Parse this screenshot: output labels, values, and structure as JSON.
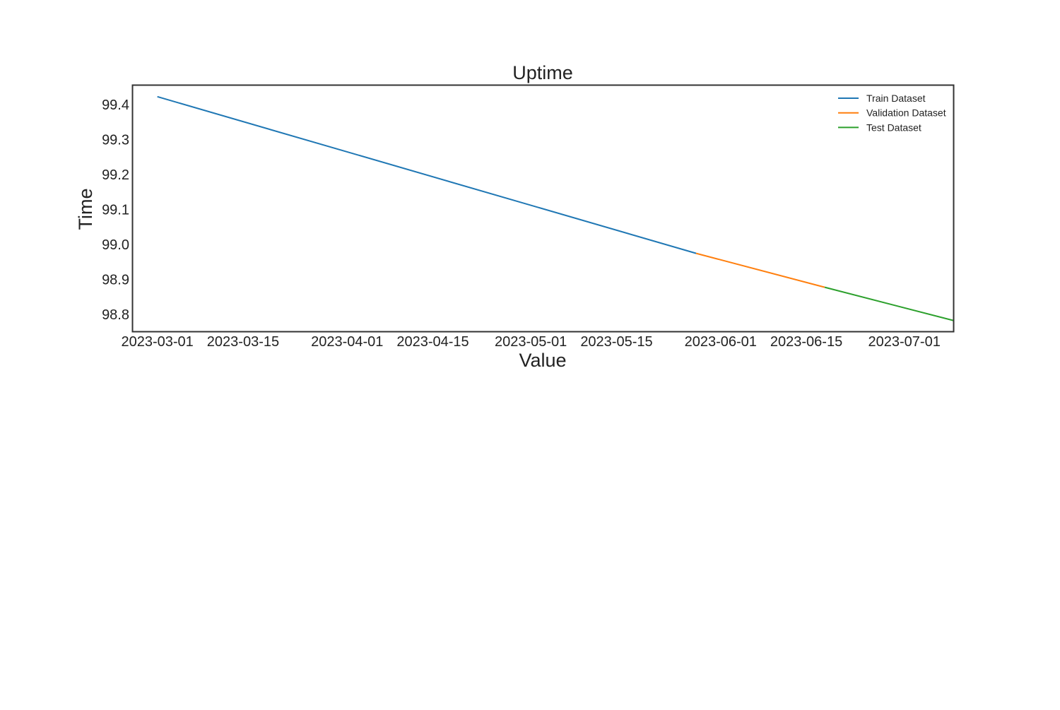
{
  "chart_data": {
    "type": "line",
    "title": "Uptime",
    "xlabel": "Value",
    "ylabel": "Time",
    "x_axis_type": "date",
    "xlim": [
      "2023-02-25",
      "2023-07-09"
    ],
    "ylim": [
      98.752,
      99.455
    ],
    "x_ticks": [
      "2023-03-01",
      "2023-03-15",
      "2023-04-01",
      "2023-04-15",
      "2023-05-01",
      "2023-05-15",
      "2023-06-01",
      "2023-06-15",
      "2023-07-01"
    ],
    "y_ticks": [
      "98.8",
      "98.9",
      "99.0",
      "99.1",
      "99.2",
      "99.3",
      "99.4"
    ],
    "grid": false,
    "legend_position": "top-right",
    "series": [
      {
        "name": "Train Dataset",
        "color": "#1f77b4",
        "x": [
          "2023-03-01",
          "2023-05-28"
        ],
        "y": [
          99.423,
          98.975
        ]
      },
      {
        "name": "Validation Dataset",
        "color": "#ff7f0e",
        "x": [
          "2023-05-28",
          "2023-06-18"
        ],
        "y": [
          98.975,
          98.878
        ]
      },
      {
        "name": "Test Dataset",
        "color": "#2ca02c",
        "x": [
          "2023-06-18",
          "2023-07-09"
        ],
        "y": [
          98.878,
          98.783
        ]
      }
    ]
  }
}
